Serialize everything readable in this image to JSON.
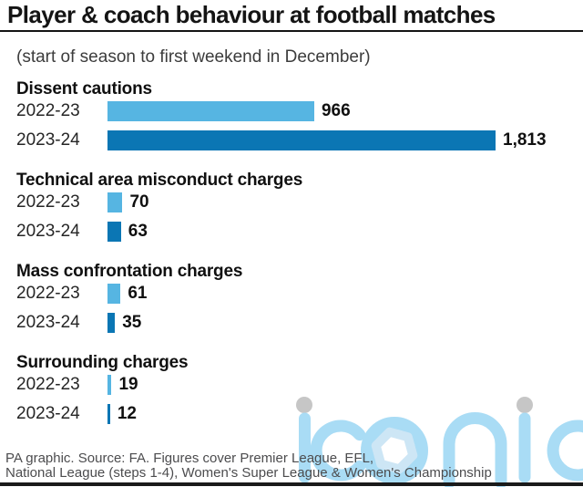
{
  "page": {
    "title": "Player & coach behaviour at football matches",
    "subtitle": "(start of season to first weekend in December)",
    "watermark": "iconic",
    "footer_lines": [
      "PA graphic. Source: FA. Figures cover Premier League, EFL,",
      "National League (steps 1-4), Women's Super League & Women's Championship"
    ]
  },
  "colors": {
    "light_blue_bar": "#56b5e2",
    "dark_blue_bar": "#0b76b4",
    "watermark_blue": "#a9dcf5",
    "watermark_hexagon": "#cde6f5",
    "watermark_dot_gray": "#c6c6c6",
    "text_black": "#141414",
    "footer_gray": "#4c4c4e"
  },
  "chart_data": {
    "type": "bar",
    "orientation": "horizontal",
    "title": "Player & coach behaviour at football matches",
    "subtitle": "(start of season to first weekend in December)",
    "max_value": 1813,
    "legend_position": "none",
    "grid": false,
    "series_colors": {
      "2022-23": "#56b5e2",
      "2023-24": "#0b76b4"
    },
    "sections": [
      {
        "heading": "Dissent cautions",
        "rows": [
          {
            "label": "2022-23",
            "value": 966,
            "display": "966"
          },
          {
            "label": "2023-24",
            "value": 1813,
            "display": "1,813"
          }
        ]
      },
      {
        "heading": "Technical area misconduct charges",
        "rows": [
          {
            "label": "2022-23",
            "value": 70,
            "display": "70"
          },
          {
            "label": "2023-24",
            "value": 63,
            "display": "63"
          }
        ]
      },
      {
        "heading": "Mass confrontation charges",
        "rows": [
          {
            "label": "2022-23",
            "value": 61,
            "display": "61"
          },
          {
            "label": "2023-24",
            "value": 35,
            "display": "35"
          }
        ]
      },
      {
        "heading": "Surrounding charges",
        "rows": [
          {
            "label": "2022-23",
            "value": 19,
            "display": "19"
          },
          {
            "label": "2023-24",
            "value": 12,
            "display": "12"
          }
        ]
      }
    ],
    "source": "PA graphic. Source: FA. Figures cover Premier League, EFL, National League (steps 1-4), Women's Super League & Women's Championship"
  }
}
